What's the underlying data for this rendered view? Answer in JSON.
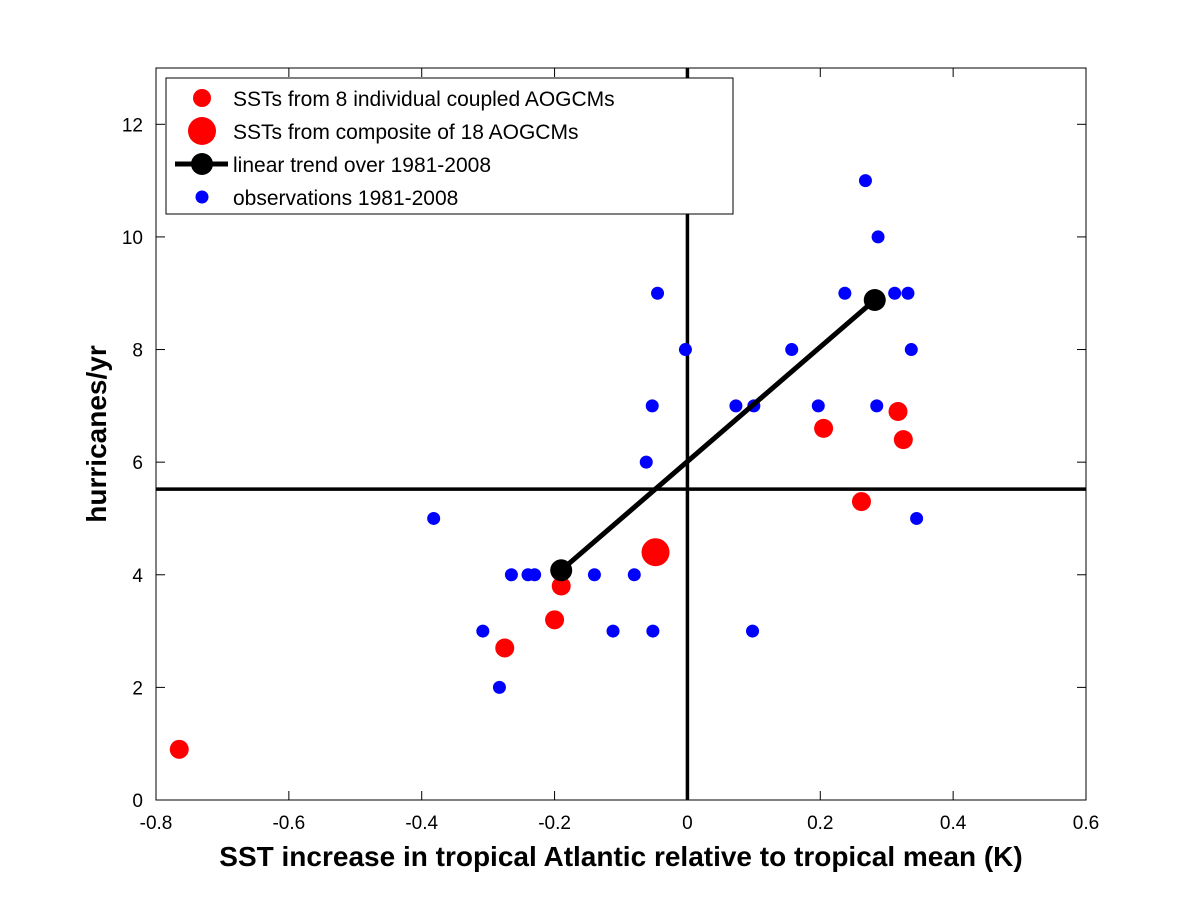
{
  "chart_data": {
    "type": "scatter",
    "xlabel": "SST increase in tropical Atlantic relative to tropical mean (K)",
    "ylabel": "hurricanes/yr",
    "xlim": [
      -0.8,
      0.6
    ],
    "ylim": [
      0,
      13
    ],
    "xticks": [
      -0.8,
      -0.6,
      -0.4,
      -0.2,
      0,
      0.2,
      0.4,
      0.6
    ],
    "yticks": [
      0,
      2,
      4,
      6,
      8,
      10,
      12
    ],
    "xtick_labels": [
      "-0.8",
      "-0.6",
      "-0.4",
      "-0.2",
      "0",
      "0.2",
      "0.4",
      "0.6"
    ],
    "ytick_labels": [
      "0",
      "2",
      "4",
      "6",
      "8",
      "10",
      "12"
    ],
    "grid": false,
    "legend_position": "top-left",
    "reference_lines": {
      "vertical_x": 0,
      "horizontal_y": 5.52
    },
    "series": [
      {
        "name": "SSTs from 8 individual coupled AOGCMs",
        "color": "#ff0000",
        "marker": "circle-medium",
        "points": [
          {
            "x": -0.765,
            "y": 0.9
          },
          {
            "x": -0.275,
            "y": 2.7
          },
          {
            "x": -0.2,
            "y": 3.2
          },
          {
            "x": -0.19,
            "y": 3.8
          },
          {
            "x": 0.205,
            "y": 6.6
          },
          {
            "x": 0.262,
            "y": 5.3
          },
          {
            "x": 0.317,
            "y": 6.9
          },
          {
            "x": 0.325,
            "y": 6.4
          }
        ]
      },
      {
        "name": "SSTs from composite of 18 AOGCMs",
        "color": "#ff0000",
        "marker": "circle-large",
        "points": [
          {
            "x": -0.048,
            "y": 4.4
          }
        ]
      },
      {
        "name": "linear trend over 1981-2008",
        "color": "#000000",
        "marker": "line-with-circle-endpoints",
        "points": [
          {
            "x": -0.19,
            "y": 4.08
          },
          {
            "x": 0.282,
            "y": 8.88
          }
        ]
      },
      {
        "name": "observations 1981-2008",
        "color": "#0000ff",
        "marker": "circle-small",
        "points": [
          {
            "x": -0.382,
            "y": 5
          },
          {
            "x": -0.308,
            "y": 3
          },
          {
            "x": -0.283,
            "y": 2
          },
          {
            "x": -0.265,
            "y": 4
          },
          {
            "x": -0.24,
            "y": 4
          },
          {
            "x": -0.23,
            "y": 4
          },
          {
            "x": -0.14,
            "y": 4
          },
          {
            "x": -0.112,
            "y": 3
          },
          {
            "x": -0.08,
            "y": 4
          },
          {
            "x": -0.062,
            "y": 6
          },
          {
            "x": -0.053,
            "y": 7
          },
          {
            "x": -0.052,
            "y": 3
          },
          {
            "x": -0.045,
            "y": 9
          },
          {
            "x": -0.003,
            "y": 8
          },
          {
            "x": 0.073,
            "y": 7
          },
          {
            "x": 0.098,
            "y": 3
          },
          {
            "x": 0.1,
            "y": 7
          },
          {
            "x": 0.157,
            "y": 8
          },
          {
            "x": 0.197,
            "y": 7
          },
          {
            "x": 0.237,
            "y": 9
          },
          {
            "x": 0.268,
            "y": 11
          },
          {
            "x": 0.285,
            "y": 7
          },
          {
            "x": 0.287,
            "y": 10
          },
          {
            "x": 0.312,
            "y": 9
          },
          {
            "x": 0.332,
            "y": 9
          },
          {
            "x": 0.337,
            "y": 8
          },
          {
            "x": 0.345,
            "y": 5
          }
        ]
      }
    ]
  }
}
